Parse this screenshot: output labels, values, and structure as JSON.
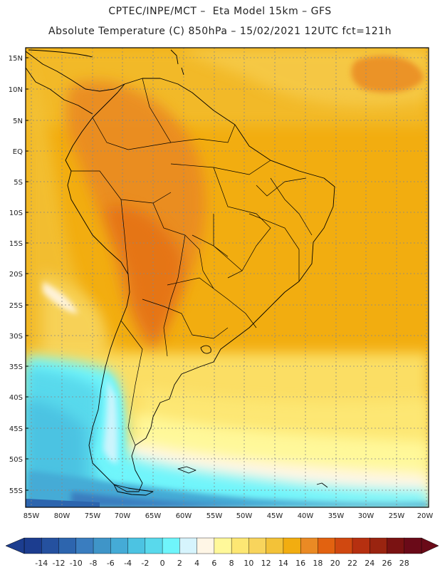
{
  "header": {
    "title_line1": "CPTEC/INPE/MCT –  Eta Model 15km – GFS",
    "title_line2": "Absolute Temperature (C) 850hPa – 15/02/2021 12UTC fct=121h"
  },
  "map": {
    "lat_labels": [
      "15N",
      "10N",
      "5N",
      "EQ",
      "5S",
      "10S",
      "15S",
      "20S",
      "25S",
      "30S",
      "35S",
      "40S",
      "45S",
      "50S",
      "55S"
    ],
    "lon_labels": [
      "85W",
      "80W",
      "75W",
      "70W",
      "65W",
      "60W",
      "55W",
      "50W",
      "45W",
      "40W",
      "35W",
      "30W",
      "25W",
      "20W"
    ],
    "colors": {
      "ocean_base": "#f2ad10",
      "warm_core": "#e8862a",
      "frame": "#000000"
    }
  },
  "colorbar": {
    "labels": [
      "-14",
      "-12",
      "-10",
      "-8",
      "-6",
      "-4",
      "-2",
      "0",
      "2",
      "4",
      "6",
      "8",
      "10",
      "12",
      "14",
      "16",
      "18",
      "20",
      "22",
      "24",
      "26",
      "28"
    ],
    "colors": [
      "#1c3d8f",
      "#25519f",
      "#2d65ae",
      "#3a7dbf",
      "#3f95c8",
      "#45abd6",
      "#4cc3e2",
      "#59d9ec",
      "#6ff5fb",
      "#d6f4fd",
      "#fff6e6",
      "#fff89a",
      "#fde773",
      "#f8d45c",
      "#f3c238",
      "#f2ad10",
      "#ea8a24",
      "#e26210",
      "#d04810",
      "#b63010",
      "#9a2410",
      "#7a1212",
      "#6a0a18"
    ]
  }
}
